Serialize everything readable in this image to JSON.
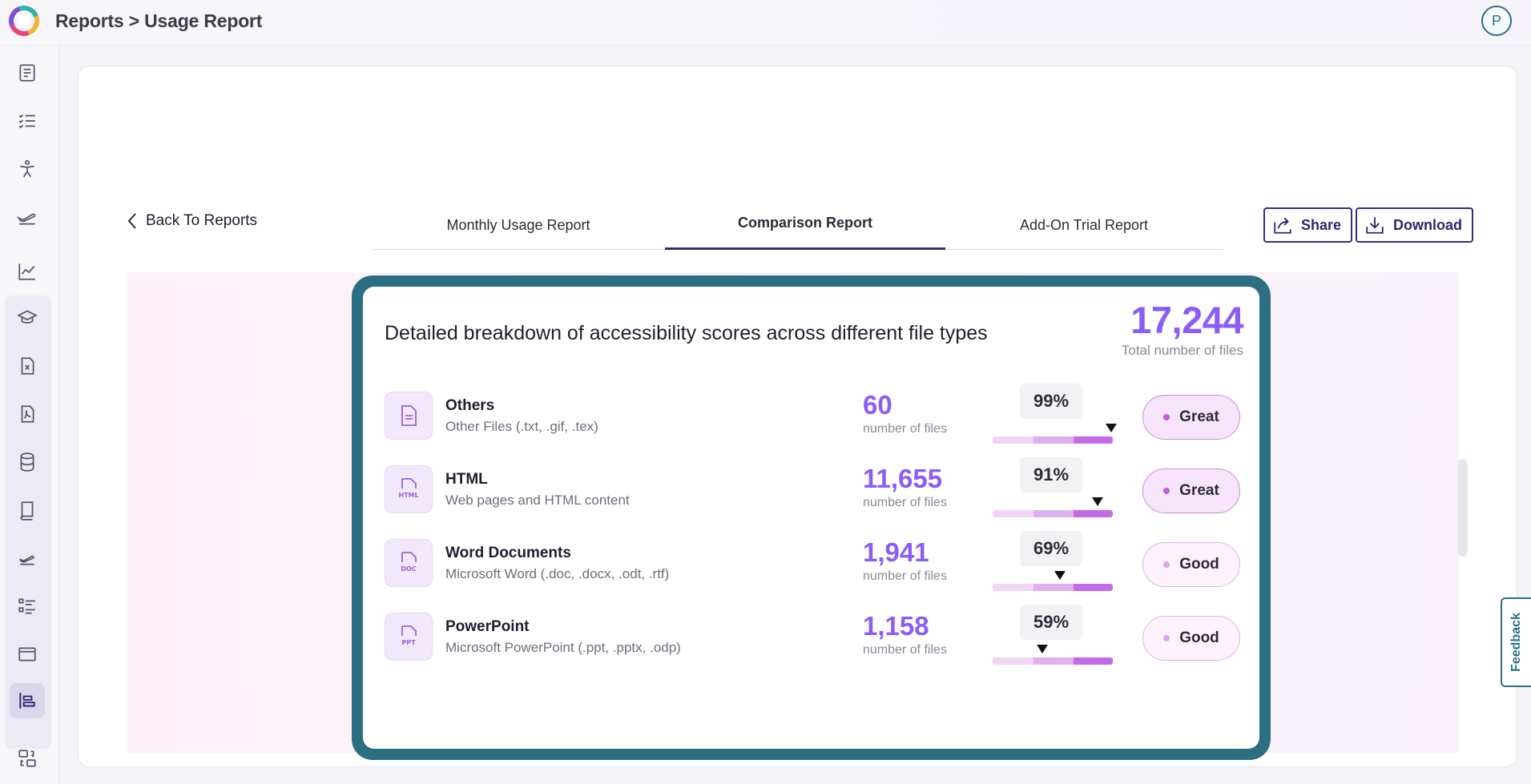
{
  "header": {
    "breadcrumb": "Reports > Usage Report",
    "avatar_initial": "P"
  },
  "sidebar": {
    "items": [
      {
        "icon": "document-list-icon"
      },
      {
        "icon": "checklist-icon"
      },
      {
        "icon": "accessibility-person-icon"
      },
      {
        "icon": "flight-icon"
      },
      {
        "icon": "line-chart-icon"
      },
      {
        "icon": "graduation-cap-icon"
      },
      {
        "icon": "excel-file-icon"
      },
      {
        "icon": "pdf-file-icon"
      },
      {
        "icon": "database-icon"
      },
      {
        "icon": "book-icon"
      },
      {
        "icon": "flight-small-icon"
      },
      {
        "icon": "list-details-icon"
      },
      {
        "icon": "window-icon"
      },
      {
        "icon": "bar-report-icon",
        "active": true
      },
      {
        "icon": "transfer-icon"
      }
    ]
  },
  "tabs": [
    {
      "label": "Monthly Usage Report"
    },
    {
      "label": "Comparison Report",
      "active": true
    },
    {
      "label": "Add-On Trial Report"
    }
  ],
  "actions": {
    "back_label": "Back To Reports",
    "share_label": "Share",
    "download_label": "Download"
  },
  "breakdown": {
    "title": "Detailed breakdown of accessibility scores across different file types",
    "total_value": "17,244",
    "total_label": "Total number of files",
    "rows": [
      {
        "name": "Others",
        "description": "Other Files (.txt, .gif, .tex)",
        "count": "60",
        "count_label": "number of files",
        "score": "99%",
        "score_value": 0.99,
        "rating": "Great",
        "icon": "file-text-icon"
      },
      {
        "name": "HTML",
        "description": "Web pages and HTML content",
        "count": "11,655",
        "count_label": "number of files",
        "score": "91%",
        "score_value": 0.91,
        "rating": "Great",
        "icon": "html-file-icon",
        "icon_text": "HTML"
      },
      {
        "name": "Word Documents",
        "description": "Microsoft Word (.doc, .docx, .odt, .rtf)",
        "count": "1,941",
        "count_label": "number of files",
        "score": "69%",
        "score_value": 0.69,
        "rating": "Good",
        "icon": "doc-file-icon",
        "icon_text": "DOC"
      },
      {
        "name": "PowerPoint",
        "description": "Microsoft PowerPoint (.ppt, .pptx, .odp)",
        "count": "1,158",
        "count_label": "number of files",
        "score": "59%",
        "score_value": 0.59,
        "rating": "Good",
        "icon": "ppt-file-icon",
        "icon_text": "PPT"
      }
    ]
  },
  "feedback_label": "Feedback",
  "colors": {
    "accent": "#8b5cf6",
    "frame": "#2c6f82",
    "brand_dark": "#3b2c7a"
  }
}
